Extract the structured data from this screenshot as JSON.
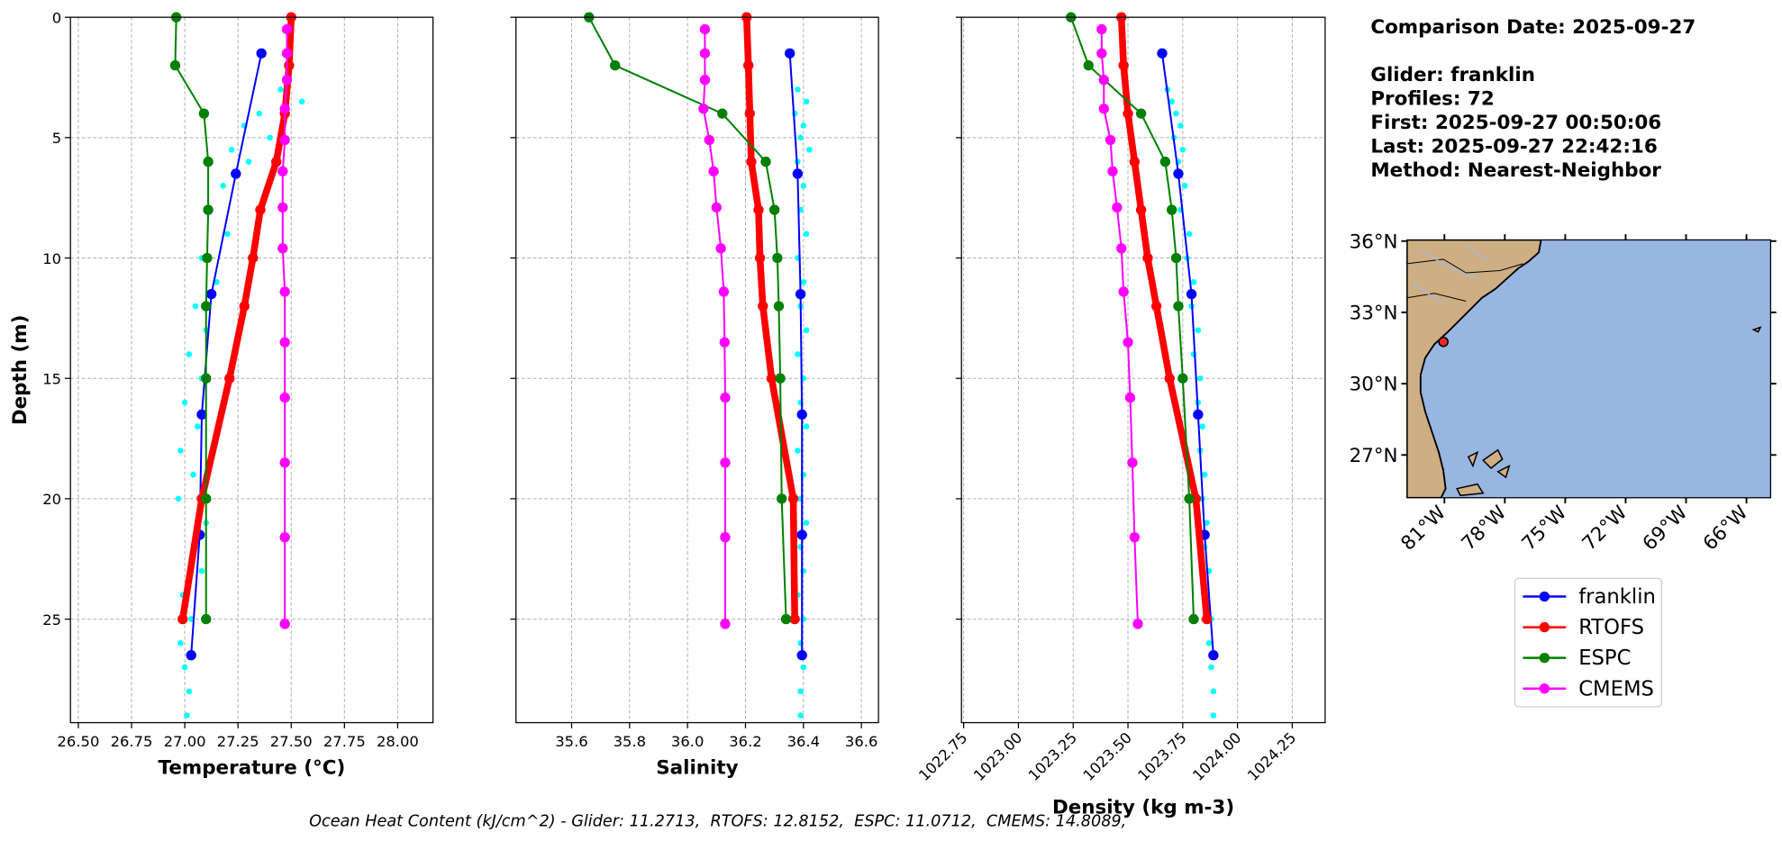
{
  "chart_data": [
    {
      "type": "profile",
      "xlabel": "Temperature (°C)",
      "ylabel": "Depth (m)",
      "xlim": [
        26.463,
        28.166
      ],
      "ylim": [
        0,
        29.3
      ],
      "invert_y": true,
      "grid": true,
      "xticks": [
        {
          "value": 26.5,
          "label": "26.50"
        },
        {
          "value": 26.75,
          "label": "26.75"
        },
        {
          "value": 27,
          "label": "27.00"
        },
        {
          "value": 27.25,
          "label": "27.25"
        },
        {
          "value": 27.5,
          "label": "27.50"
        },
        {
          "value": 27.75,
          "label": "27.75"
        },
        {
          "value": 28,
          "label": "28.00"
        }
      ],
      "yticks": [
        0,
        5,
        10,
        15,
        20,
        25
      ],
      "scatter": {
        "color": "#00ffff",
        "depth": [
          3,
          3.5,
          4,
          4.5,
          5,
          5.5,
          6,
          7,
          8,
          9,
          10,
          11,
          12,
          13,
          14,
          15,
          16,
          17,
          18,
          19,
          20,
          21,
          22,
          23,
          24,
          25,
          26,
          27,
          28,
          29
        ],
        "values": [
          27.45,
          27.55,
          27.35,
          27.28,
          27.4,
          27.22,
          27.3,
          27.18,
          27.12,
          27.2,
          27.08,
          27.15,
          27.05,
          27.1,
          27.02,
          27.08,
          27.0,
          27.06,
          26.98,
          27.04,
          26.97,
          27.1,
          27.05,
          27.08,
          26.99,
          27.03,
          26.98,
          27.0,
          27.02,
          27.01
        ]
      },
      "series": [
        {
          "name": "franklin",
          "color": "#0000ff",
          "depth": [
            1.5,
            6.5,
            11.5,
            16.5,
            21.5,
            26.5
          ],
          "values": [
            27.36,
            27.24,
            27.125,
            27.08,
            27.07,
            27.03
          ]
        },
        {
          "name": "RTOFS",
          "color": "#ff0000",
          "depth": [
            0,
            2,
            4,
            6,
            8,
            10,
            12,
            15,
            20,
            25
          ],
          "values": [
            27.5,
            27.49,
            27.47,
            27.43,
            27.355,
            27.32,
            27.28,
            27.21,
            27.08,
            26.99
          ]
        },
        {
          "name": "ESPC",
          "color": "#008000",
          "depth": [
            0,
            2,
            4,
            6,
            8,
            10,
            12,
            15,
            20,
            25
          ],
          "values": [
            26.96,
            26.955,
            27.09,
            27.11,
            27.11,
            27.105,
            27.1,
            27.1,
            27.1,
            27.1
          ]
        },
        {
          "name": "CMEMS",
          "color": "#ff00ff",
          "depth": [
            0.5,
            1.5,
            2.6,
            3.8,
            5.1,
            6.4,
            7.9,
            9.6,
            11.4,
            13.5,
            15.8,
            18.5,
            21.6,
            25.2
          ],
          "values": [
            27.48,
            27.48,
            27.48,
            27.47,
            27.47,
            27.46,
            27.46,
            27.46,
            27.47,
            27.47,
            27.47,
            27.47,
            27.47,
            27.47
          ]
        }
      ]
    },
    {
      "type": "profile",
      "xlabel": "Salinity",
      "xlim": [
        35.408,
        36.659
      ],
      "ylim": [
        0,
        29.3
      ],
      "invert_y": true,
      "grid": true,
      "xticks": [
        35.6,
        35.8,
        {
          "value": 36,
          "label": "36.0"
        },
        36.2,
        36.4,
        36.6
      ],
      "yticks": [
        0,
        5,
        10,
        15,
        20,
        25
      ],
      "scatter": {
        "color": "#00ffff",
        "depth": [
          3,
          3.5,
          4,
          4.5,
          5,
          5.5,
          6,
          7,
          8,
          9,
          10,
          11,
          12,
          13,
          14,
          15,
          16,
          17,
          18,
          19,
          20,
          21,
          22,
          23,
          24,
          25,
          26,
          27,
          28,
          29
        ],
        "values": [
          36.38,
          36.41,
          36.37,
          36.4,
          36.39,
          36.42,
          36.38,
          36.4,
          36.39,
          36.41,
          36.38,
          36.4,
          36.39,
          36.41,
          36.38,
          36.4,
          36.39,
          36.41,
          36.38,
          36.4,
          36.39,
          36.41,
          36.39,
          36.4,
          36.38,
          36.4,
          36.39,
          36.4,
          36.39,
          36.39
        ]
      },
      "series": [
        {
          "name": "franklin",
          "color": "#0000ff",
          "depth": [
            1.5,
            6.5,
            11.5,
            16.5,
            21.5,
            26.5
          ],
          "values": [
            36.353,
            36.38,
            36.39,
            36.395,
            36.395,
            36.395
          ]
        },
        {
          "name": "RTOFS",
          "color": "#ff0000",
          "depth": [
            0,
            2,
            4,
            6,
            8,
            10,
            12,
            15,
            20,
            25
          ],
          "values": [
            36.204,
            36.21,
            36.215,
            36.22,
            36.245,
            36.25,
            36.26,
            36.29,
            36.365,
            36.37
          ]
        },
        {
          "name": "ESPC",
          "color": "#008000",
          "depth": [
            0,
            2,
            4,
            6,
            8,
            10,
            12,
            15,
            20,
            25
          ],
          "values": [
            35.66,
            35.75,
            36.12,
            36.27,
            36.3,
            36.31,
            36.315,
            36.32,
            36.325,
            36.34
          ]
        },
        {
          "name": "CMEMS",
          "color": "#ff00ff",
          "depth": [
            0.5,
            1.5,
            2.6,
            3.8,
            5.1,
            6.4,
            7.9,
            9.6,
            11.4,
            13.5,
            15.8,
            18.5,
            21.6,
            25.2
          ],
          "values": [
            36.06,
            36.06,
            36.06,
            36.055,
            36.075,
            36.09,
            36.1,
            36.115,
            36.125,
            36.128,
            36.13,
            36.13,
            36.13,
            36.13
          ]
        }
      ]
    },
    {
      "type": "profile",
      "xlabel": "Density (kg m-3)",
      "xlim": [
        1022.74,
        1024.4
      ],
      "ylim": [
        0,
        29.3
      ],
      "invert_y": true,
      "grid": true,
      "xtick_rotation": 45,
      "xticks": [
        1022.75,
        {
          "value": 1023,
          "label": "1023.00"
        },
        1023.25,
        {
          "value": 1023.5,
          "label": "1023.50"
        },
        1023.75,
        {
          "value": 1024,
          "label": "1024.00"
        },
        1024.25
      ],
      "yticks": [
        0,
        5,
        10,
        15,
        20,
        25
      ],
      "scatter": {
        "color": "#00ffff",
        "depth": [
          3,
          3.5,
          4,
          4.5,
          5,
          5.5,
          6,
          7,
          8,
          9,
          10,
          11,
          12,
          13,
          14,
          15,
          16,
          17,
          18,
          19,
          20,
          21,
          22,
          23,
          24,
          25,
          26,
          27,
          28,
          29
        ],
        "values": [
          1023.68,
          1023.7,
          1023.72,
          1023.74,
          1023.71,
          1023.75,
          1023.73,
          1023.76,
          1023.74,
          1023.78,
          1023.77,
          1023.8,
          1023.79,
          1023.82,
          1023.8,
          1023.83,
          1023.82,
          1023.84,
          1023.83,
          1023.85,
          1023.84,
          1023.86,
          1023.85,
          1023.87,
          1023.86,
          1023.88,
          1023.87,
          1023.88,
          1023.89,
          1023.89
        ]
      },
      "series": [
        {
          "name": "franklin",
          "color": "#0000ff",
          "depth": [
            1.5,
            6.5,
            11.5,
            16.5,
            21.5,
            26.5
          ],
          "values": [
            1023.656,
            1023.73,
            1023.79,
            1023.82,
            1023.85,
            1023.89
          ]
        },
        {
          "name": "RTOFS",
          "color": "#ff0000",
          "depth": [
            0,
            2,
            4,
            6,
            8,
            10,
            12,
            15,
            20,
            25
          ],
          "values": [
            1023.47,
            1023.48,
            1023.5,
            1023.53,
            1023.56,
            1023.59,
            1023.63,
            1023.69,
            1023.81,
            1023.86
          ]
        },
        {
          "name": "ESPC",
          "color": "#008000",
          "depth": [
            0,
            2,
            4,
            6,
            8,
            10,
            12,
            15,
            20,
            25
          ],
          "values": [
            1023.24,
            1023.32,
            1023.56,
            1023.67,
            1023.7,
            1023.72,
            1023.73,
            1023.75,
            1023.78,
            1023.8
          ]
        },
        {
          "name": "CMEMS",
          "color": "#ff00ff",
          "depth": [
            0.5,
            1.5,
            2.6,
            3.8,
            5.1,
            6.4,
            7.9,
            9.6,
            11.4,
            13.5,
            15.8,
            18.5,
            21.6,
            25.2
          ],
          "values": [
            1023.38,
            1023.38,
            1023.39,
            1023.39,
            1023.42,
            1023.43,
            1023.45,
            1023.47,
            1023.48,
            1023.5,
            1023.51,
            1023.52,
            1023.53,
            1023.545
          ]
        }
      ]
    }
  ],
  "info": [
    "Comparison Date: 2025-09-27",
    "Glider: franklin",
    "Profiles: 72",
    "First: 2025-09-27 00:50:06",
    "Last: 2025-09-27 22:42:16",
    "Method: Nearest-Neighbor"
  ],
  "map": {
    "xlim": [
      -82.86,
      -64.8
    ],
    "ylim": [
      25.2,
      36.05
    ],
    "xticks": [
      {
        "value": -81,
        "label": "81°W"
      },
      {
        "value": -78,
        "label": "78°W"
      },
      {
        "value": -75,
        "label": "75°W"
      },
      {
        "value": -72,
        "label": "72°W"
      },
      {
        "value": -69,
        "label": "69°W"
      },
      {
        "value": -66,
        "label": "66°W"
      }
    ],
    "yticks": [
      {
        "value": 36,
        "label": "36°N"
      },
      {
        "value": 33,
        "label": "33°N"
      },
      {
        "value": 30,
        "label": "30°N"
      },
      {
        "value": 27,
        "label": "27°N"
      }
    ],
    "glider_position": {
      "lon": -81.05,
      "lat": 31.76
    }
  },
  "footer": "Ocean Heat Content (kJ/cm^2) - Glider: 11.2713,  RTOFS: 12.8152,  ESPC: 11.0712,  CMEMS: 14.8089,"
}
